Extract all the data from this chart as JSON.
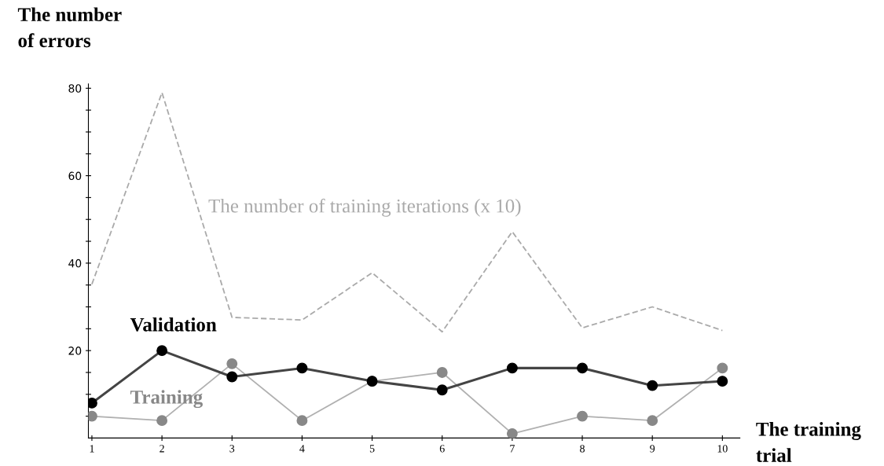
{
  "chart_data": {
    "type": "line",
    "xlabel": "The training\ntrial",
    "ylabel": "The number\nof errors",
    "x": [
      1,
      2,
      3,
      4,
      5,
      6,
      7,
      8,
      9,
      10
    ],
    "xlim": [
      0.95,
      10.25
    ],
    "ylim": [
      0,
      81
    ],
    "xticks": [
      1,
      2,
      3,
      4,
      5,
      6,
      7,
      8,
      9,
      10
    ],
    "yticks": [
      {
        "value": 5,
        "label": null
      },
      {
        "value": 10,
        "label": null
      },
      {
        "value": 15,
        "label": null
      },
      20,
      {
        "value": 25,
        "label": null
      },
      {
        "value": 30,
        "label": null
      },
      {
        "value": 35,
        "label": null
      },
      40,
      {
        "value": 45,
        "label": null
      },
      {
        "value": 50,
        "label": null
      },
      {
        "value": 55,
        "label": null
      },
      60,
      {
        "value": 65,
        "label": null
      },
      {
        "value": 70,
        "label": null
      },
      {
        "value": 75,
        "label": null
      },
      80
    ],
    "grid": false,
    "legend": false,
    "series": [
      {
        "name": "The number of training iterations (x 10)",
        "color": "#aaaaaa",
        "line_style": "dashed",
        "marker": "none",
        "values": [
          35.2,
          79,
          27.6,
          27,
          37.8,
          24.3,
          47.2,
          25.2,
          30,
          24.6
        ]
      },
      {
        "name": "Validation",
        "color": "#000000",
        "line_style": "solid",
        "marker": "circle",
        "values": [
          8,
          20,
          14,
          16,
          13,
          11,
          16,
          16,
          12,
          13
        ]
      },
      {
        "name": "Training",
        "color": "#888888",
        "line_style": "solid",
        "marker": "circle",
        "values": [
          5,
          4,
          17,
          4,
          13,
          15,
          1,
          5,
          4,
          16
        ]
      }
    ]
  }
}
